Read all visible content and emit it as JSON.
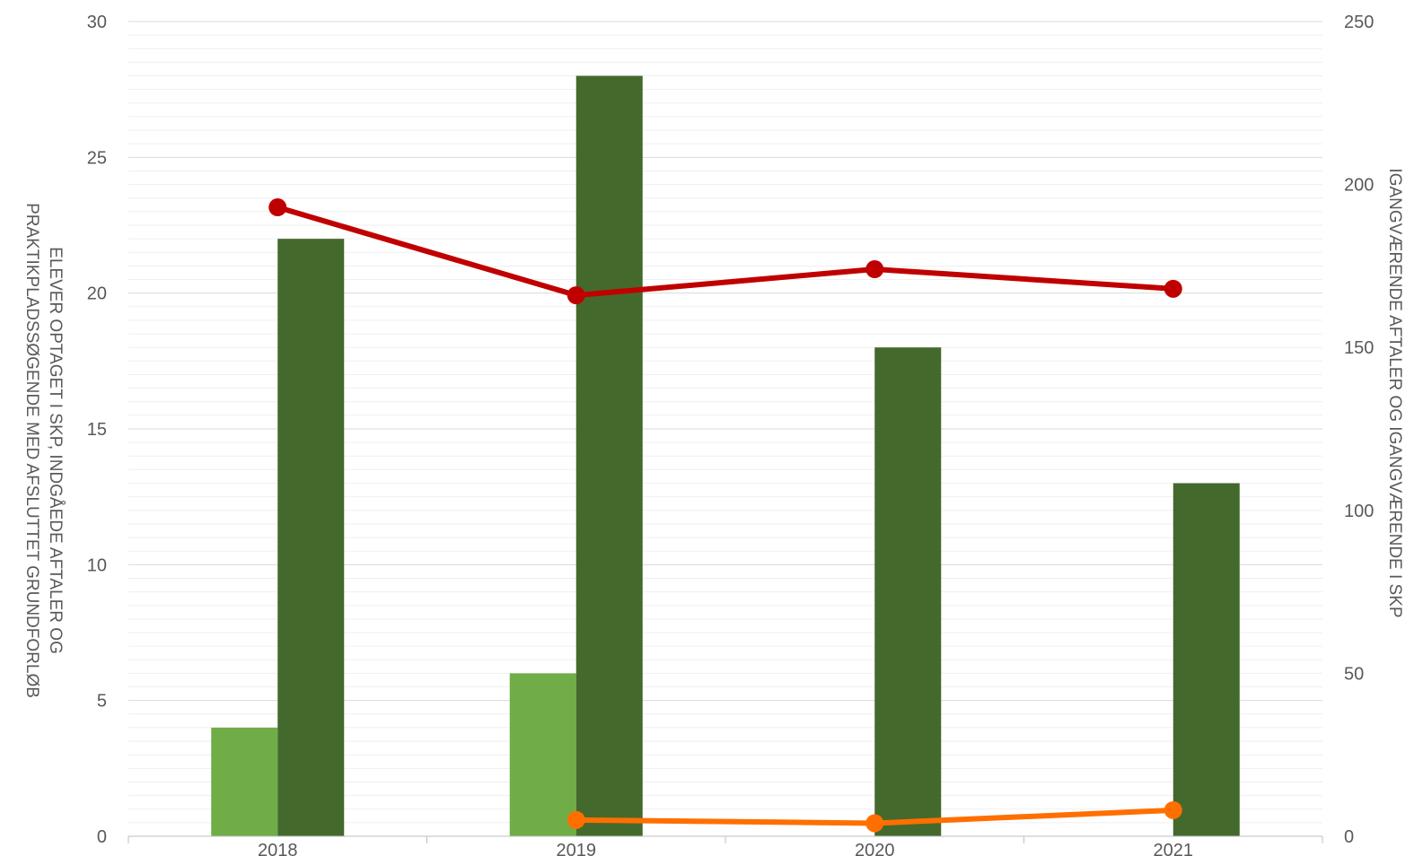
{
  "chart_data": {
    "type": "bar",
    "categories": [
      "2018",
      "2019",
      "2020",
      "2021"
    ],
    "left_axis": {
      "label_line1": "ELEVER OPTAGET I SKP, INDGÅEDE AFTALER OG",
      "label_line2": "PRAKTIKPLADSSØGENDE MED AFSLUTTET GRUNDFORLØB",
      "ylim": [
        0,
        30
      ],
      "ticks": [
        "0",
        "5",
        "10",
        "15",
        "20",
        "25",
        "30"
      ]
    },
    "right_axis": {
      "label": "IGANGVÆRENDE AFTALER OG IGANGVÆRENDE I SKP",
      "ylim": [
        0,
        250
      ],
      "ticks": [
        "0",
        "50",
        "100",
        "150",
        "200",
        "250"
      ]
    },
    "bar_series": [
      {
        "axis": "left",
        "color": "#70ad47",
        "values": [
          4,
          6,
          0,
          0
        ]
      },
      {
        "axis": "left",
        "color": "#44692c",
        "values": [
          22,
          28,
          18,
          13
        ]
      }
    ],
    "line_series": [
      {
        "axis": "right",
        "color": "#c00000",
        "values": [
          193,
          166,
          174,
          168
        ]
      },
      {
        "axis": "right",
        "color": "#ff6f00",
        "values": [
          null,
          5,
          4,
          8
        ]
      }
    ],
    "grid": true,
    "legend": "none"
  }
}
